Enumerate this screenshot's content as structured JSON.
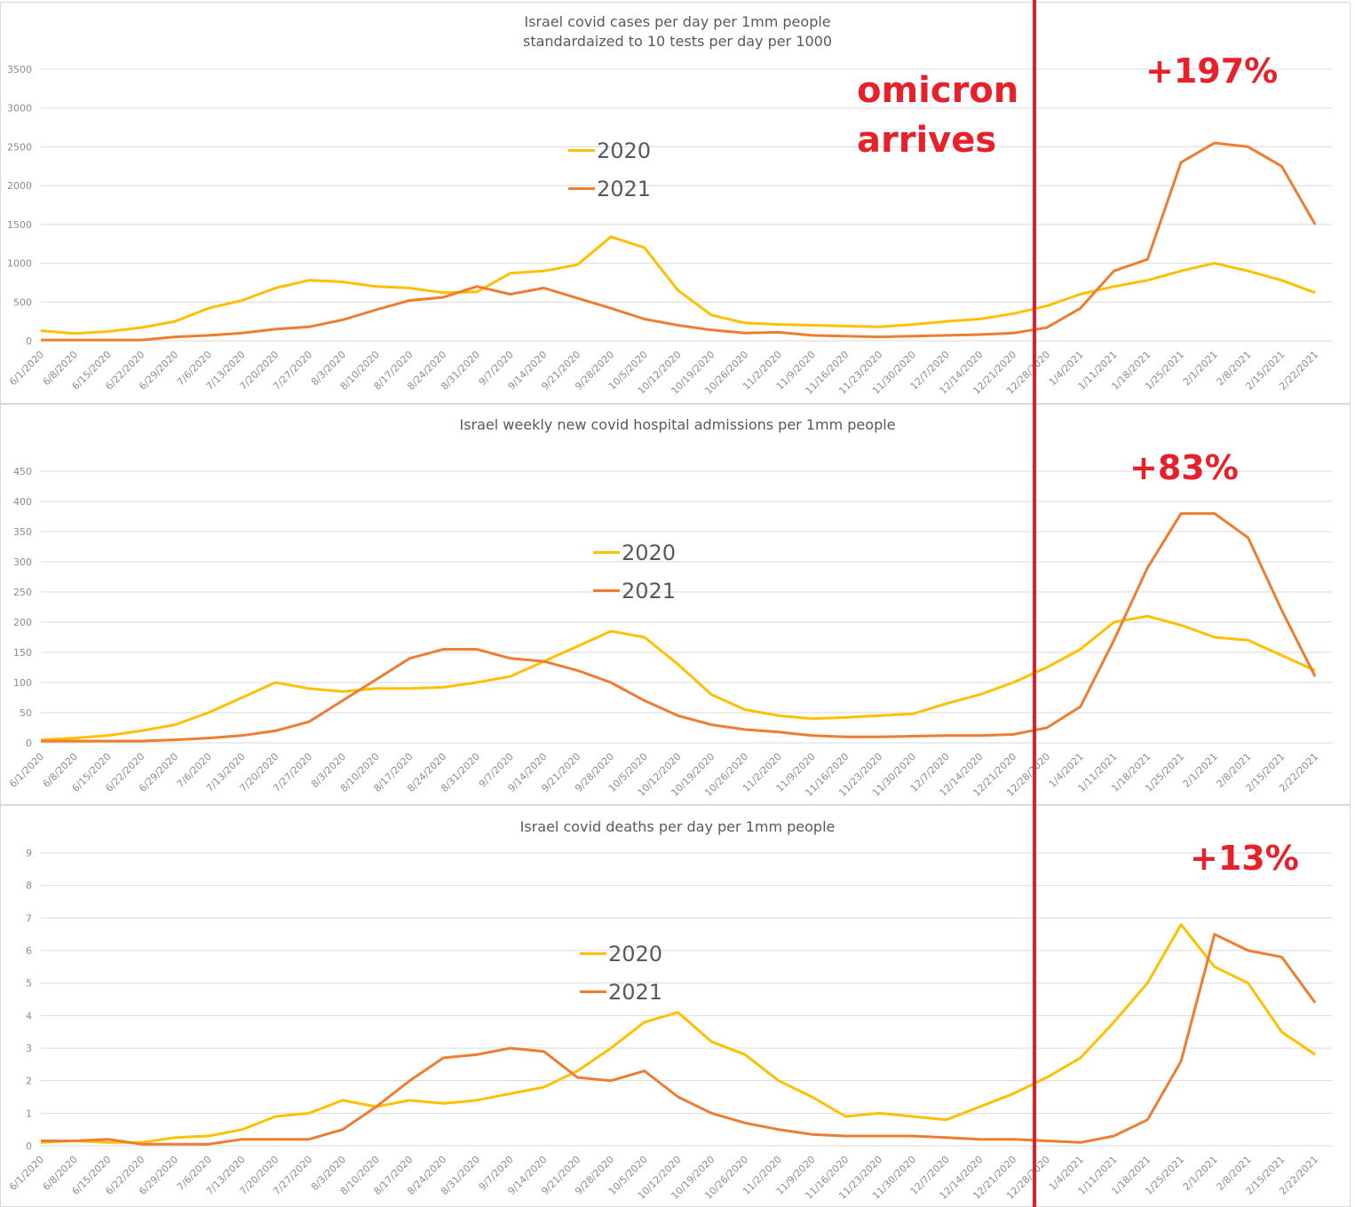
{
  "annotations": {
    "omicron_line1": "omicron",
    "omicron_line2": "arrives",
    "cases_pct": "+197%",
    "hosp_pct": "+83%",
    "deaths_pct": "+13%"
  },
  "colors": {
    "y2020": "#ffc000",
    "y2021": "#ed7d31",
    "grid": "#d9d9d9",
    "marker": "#e01e2b"
  },
  "chart_data": [
    {
      "type": "line",
      "title": "Israel covid cases per day per 1mm people",
      "subtitle": "standardaized to 10 tests per day per 1000",
      "ylim": [
        0,
        3500
      ],
      "yticks": [
        0,
        500,
        1000,
        1500,
        2000,
        2500,
        3000,
        3500
      ],
      "x_tick_labels": [
        "6/1/2020",
        "6/8/2020",
        "6/15/2020",
        "6/22/2020",
        "6/29/2020",
        "7/6/2020",
        "7/13/2020",
        "7/20/2020",
        "7/27/2020",
        "8/3/2020",
        "8/10/2020",
        "8/17/2020",
        "8/24/2020",
        "8/31/2020",
        "9/7/2020",
        "9/14/2020",
        "9/21/2020",
        "9/28/2020",
        "10/5/2020",
        "10/12/2020",
        "10/19/2020",
        "10/26/2020",
        "11/2/2020",
        "11/9/2020",
        "11/16/2020",
        "11/23/2020",
        "11/30/2020",
        "12/7/2020",
        "12/14/2020",
        "12/21/2020",
        "12/28/2020",
        "1/4/2021",
        "1/11/2021",
        "1/18/2021",
        "1/25/2021",
        "2/1/2021",
        "2/8/2021",
        "2/15/2021",
        "2/22/2021"
      ],
      "series": [
        {
          "name": "2020",
          "values": [
            130,
            95,
            120,
            170,
            250,
            420,
            520,
            680,
            780,
            760,
            700,
            680,
            620,
            630,
            870,
            900,
            980,
            1340,
            1200,
            650,
            330,
            230,
            210,
            200,
            190,
            180,
            210,
            250,
            280,
            350,
            450,
            600,
            700,
            780,
            900,
            1000,
            900,
            780,
            620
          ]
        },
        {
          "name": "2021",
          "values": [
            10,
            10,
            10,
            10,
            50,
            70,
            100,
            150,
            180,
            270,
            400,
            520,
            560,
            700,
            600,
            680,
            550,
            420,
            280,
            200,
            140,
            100,
            110,
            70,
            60,
            50,
            60,
            70,
            80,
            100,
            170,
            420,
            900,
            1050,
            2300,
            2550,
            2500,
            2250,
            1500
          ]
        }
      ]
    },
    {
      "type": "line",
      "title": "Israel weekly new covid hospital admissions per 1mm people",
      "ylim": [
        0,
        450
      ],
      "yticks": [
        0,
        50,
        100,
        150,
        200,
        250,
        300,
        350,
        400,
        450
      ],
      "x_tick_labels": [
        "6/1/2020",
        "6/8/2020",
        "6/15/2020",
        "6/22/2020",
        "6/29/2020",
        "7/6/2020",
        "7/13/2020",
        "7/20/2020",
        "7/27/2020",
        "8/3/2020",
        "8/10/2020",
        "8/17/2020",
        "8/24/2020",
        "8/31/2020",
        "9/7/2020",
        "9/14/2020",
        "9/21/2020",
        "9/28/2020",
        "10/5/2020",
        "10/12/2020",
        "10/19/2020",
        "10/26/2020",
        "11/2/2020",
        "11/9/2020",
        "11/16/2020",
        "11/23/2020",
        "11/30/2020",
        "12/7/2020",
        "12/14/2020",
        "12/21/2020",
        "12/28/2020",
        "1/4/2021",
        "1/11/2021",
        "1/18/2021",
        "1/25/2021",
        "2/1/2021",
        "2/8/2021",
        "2/15/2021",
        "2/22/2021"
      ],
      "series": [
        {
          "name": "2020",
          "values": [
            5,
            8,
            12,
            20,
            30,
            50,
            75,
            100,
            90,
            85,
            90,
            90,
            92,
            100,
            110,
            135,
            160,
            185,
            175,
            130,
            80,
            55,
            45,
            40,
            42,
            45,
            48,
            65,
            80,
            100,
            125,
            155,
            200,
            210,
            195,
            175,
            170,
            145,
            120
          ]
        },
        {
          "name": "2021",
          "values": [
            3,
            3,
            3,
            3,
            5,
            8,
            12,
            20,
            35,
            70,
            105,
            140,
            155,
            155,
            140,
            135,
            120,
            100,
            70,
            45,
            30,
            22,
            18,
            12,
            10,
            10,
            11,
            12,
            12,
            14,
            25,
            60,
            170,
            290,
            380,
            380,
            340,
            220,
            110
          ]
        }
      ]
    },
    {
      "type": "line",
      "title": "Israel covid deaths per day per 1mm people",
      "ylim": [
        0,
        9
      ],
      "yticks": [
        0,
        1,
        2,
        3,
        4,
        5,
        6,
        7,
        8,
        9
      ],
      "x_tick_labels": [
        "6/1/2020",
        "6/8/2020",
        "6/15/2020",
        "6/22/2020",
        "6/29/2020",
        "7/6/2020",
        "7/13/2020",
        "7/20/2020",
        "7/27/2020",
        "8/3/2020",
        "8/10/2020",
        "8/17/2020",
        "8/24/2020",
        "8/31/2020",
        "9/7/2020",
        "9/14/2020",
        "9/21/2020",
        "9/28/2020",
        "10/5/2020",
        "10/12/2020",
        "10/19/2020",
        "10/26/2020",
        "11/2/2020",
        "11/9/2020",
        "11/16/2020",
        "11/23/2020",
        "11/30/2020",
        "12/7/2020",
        "12/14/2020",
        "12/21/2020",
        "12/28/2020",
        "1/4/2021",
        "1/11/2021",
        "1/18/2021",
        "1/25/2021",
        "2/1/2021",
        "2/8/2021",
        "2/15/2021",
        "2/22/2021"
      ],
      "series": [
        {
          "name": "2020",
          "values": [
            0.1,
            0.15,
            0.1,
            0.1,
            0.25,
            0.3,
            0.5,
            0.9,
            1.0,
            1.4,
            1.2,
            1.4,
            1.3,
            1.4,
            1.6,
            1.8,
            2.3,
            3.0,
            3.8,
            4.1,
            3.2,
            2.8,
            2.0,
            1.5,
            0.9,
            1.0,
            0.9,
            0.8,
            1.2,
            1.6,
            2.1,
            2.7,
            3.8,
            5.0,
            6.8,
            5.5,
            5.0,
            3.5,
            2.8
          ]
        },
        {
          "name": "2021",
          "values": [
            0.15,
            0.15,
            0.2,
            0.05,
            0.05,
            0.05,
            0.2,
            0.2,
            0.2,
            0.5,
            1.2,
            2.0,
            2.7,
            2.8,
            3.0,
            2.9,
            2.1,
            2.0,
            2.3,
            1.5,
            1.0,
            0.7,
            0.5,
            0.35,
            0.3,
            0.3,
            0.3,
            0.25,
            0.2,
            0.2,
            0.15,
            0.1,
            0.3,
            0.8,
            2.6,
            6.5,
            6.0,
            5.8,
            4.4
          ]
        }
      ]
    }
  ]
}
